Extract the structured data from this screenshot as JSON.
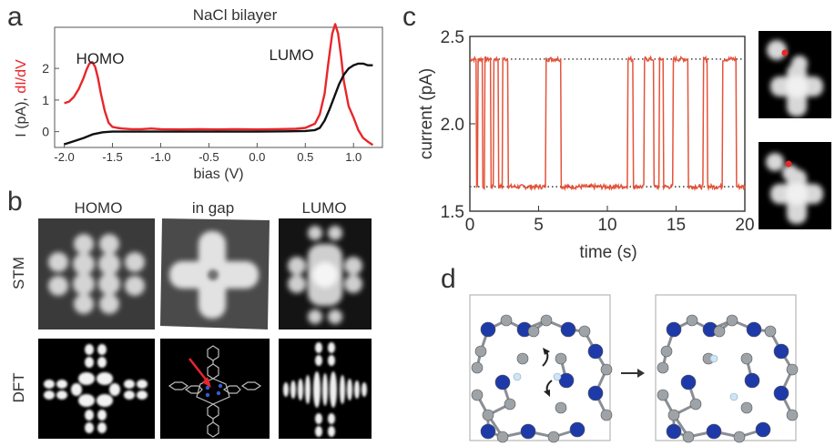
{
  "panels": {
    "a": {
      "label": "a"
    },
    "b": {
      "label": "b"
    },
    "c": {
      "label": "c"
    },
    "d": {
      "label": "d"
    }
  },
  "chart_data": [
    {
      "type": "line",
      "panel": "a",
      "title": "NaCl bilayer",
      "xlabel": "bias (V)",
      "ylabel_black": "I (pA), ",
      "ylabel_red": "dI/dV",
      "xlim": [
        -2.1,
        1.3
      ],
      "ylim": [
        -0.5,
        3.3
      ],
      "xticks": [
        "-2.0",
        "-1.5",
        "-1.0",
        "-0.5",
        "0.0",
        "0.5",
        "1.0"
      ],
      "xtick_values": [
        -2.0,
        -1.5,
        -1.0,
        -0.5,
        0.0,
        0.5,
        1.0
      ],
      "yticks": [
        "0",
        "1",
        "2"
      ],
      "ytick_values": [
        0,
        1,
        2
      ],
      "annotations": [
        "HOMO",
        "LUMO"
      ],
      "series": [
        {
          "color": "#e8262a",
          "x": [
            -2.0,
            -1.95,
            -1.9,
            -1.85,
            -1.8,
            -1.77,
            -1.74,
            -1.71,
            -1.68,
            -1.65,
            -1.62,
            -1.58,
            -1.54,
            -1.5,
            -1.45,
            -1.4,
            -1.3,
            -1.2,
            -1.1,
            -1.0,
            -0.8,
            -0.6,
            -0.4,
            -0.2,
            0.0,
            0.2,
            0.4,
            0.5,
            0.6,
            0.65,
            0.7,
            0.74,
            0.78,
            0.81,
            0.84,
            0.87,
            0.9,
            0.95,
            1.0,
            1.05,
            1.1,
            1.15,
            1.2
          ],
          "y": [
            0.9,
            0.95,
            1.1,
            1.35,
            1.7,
            1.95,
            2.15,
            2.2,
            2.05,
            1.7,
            1.2,
            0.65,
            0.28,
            0.15,
            0.12,
            0.1,
            0.08,
            0.08,
            0.1,
            0.08,
            0.07,
            0.08,
            0.07,
            0.08,
            0.07,
            0.08,
            0.09,
            0.12,
            0.25,
            0.55,
            1.2,
            2.2,
            3.1,
            3.4,
            3.1,
            2.4,
            1.6,
            0.8,
            0.45,
            0.05,
            -0.2,
            -0.32,
            -0.42
          ]
        },
        {
          "color": "#111111",
          "x": [
            -2.0,
            -1.9,
            -1.8,
            -1.7,
            -1.6,
            -1.5,
            -1.4,
            -1.3,
            -1.2,
            -1.0,
            -0.5,
            0.0,
            0.3,
            0.5,
            0.6,
            0.65,
            0.7,
            0.75,
            0.8,
            0.85,
            0.9,
            0.95,
            1.0,
            1.05,
            1.1,
            1.15,
            1.2
          ],
          "y": [
            -0.4,
            -0.3,
            -0.2,
            -0.08,
            -0.02,
            0.0,
            0.0,
            0.0,
            0.0,
            0.0,
            0.0,
            0.0,
            0.01,
            0.02,
            0.05,
            0.12,
            0.35,
            0.7,
            1.1,
            1.5,
            1.8,
            2.0,
            2.1,
            2.15,
            2.15,
            2.1,
            2.1
          ]
        }
      ]
    },
    {
      "type": "line",
      "panel": "c",
      "title": "",
      "xlabel": "time (s)",
      "ylabel": "current (pA)",
      "xlim": [
        0,
        20
      ],
      "ylim": [
        1.5,
        2.5
      ],
      "xticks": [
        "0",
        "5",
        "10",
        "15",
        "20"
      ],
      "xtick_values": [
        0,
        5,
        10,
        15,
        20
      ],
      "yticks": [
        "1.5",
        "2.0",
        "2.5"
      ],
      "ytick_values": [
        1.5,
        2.0,
        2.5
      ],
      "reference_levels": [
        2.37,
        1.64
      ],
      "high_level": 2.37,
      "low_level": 1.64,
      "series": [
        {
          "color": "#e5533a",
          "high_intervals": [
            [
              0.0,
              0.45
            ],
            [
              0.6,
              0.95
            ],
            [
              1.1,
              1.55
            ],
            [
              1.75,
              2.1
            ],
            [
              2.35,
              2.75
            ],
            [
              5.5,
              6.6
            ],
            [
              11.5,
              11.9
            ],
            [
              12.7,
              13.4
            ],
            [
              13.8,
              14.1
            ],
            [
              14.8,
              15.9
            ],
            [
              17.0,
              17.3
            ],
            [
              18.4,
              19.4
            ]
          ]
        }
      ]
    },
    {
      "type": "image_grid",
      "panel": "b",
      "columns": [
        "HOMO",
        "in gap",
        "LUMO"
      ],
      "rows": [
        "STM",
        "DFT"
      ]
    },
    {
      "type": "diagram",
      "panel": "d"
    }
  ],
  "colors": {
    "red_trace": "#e8262a",
    "black_trace": "#111111",
    "switching_trace": "#e5533a",
    "nitrogen_atom": "#1e3aa8",
    "carbon_atom": "#9ea3a8",
    "hydrogen_atom": "#cfe4f4"
  }
}
